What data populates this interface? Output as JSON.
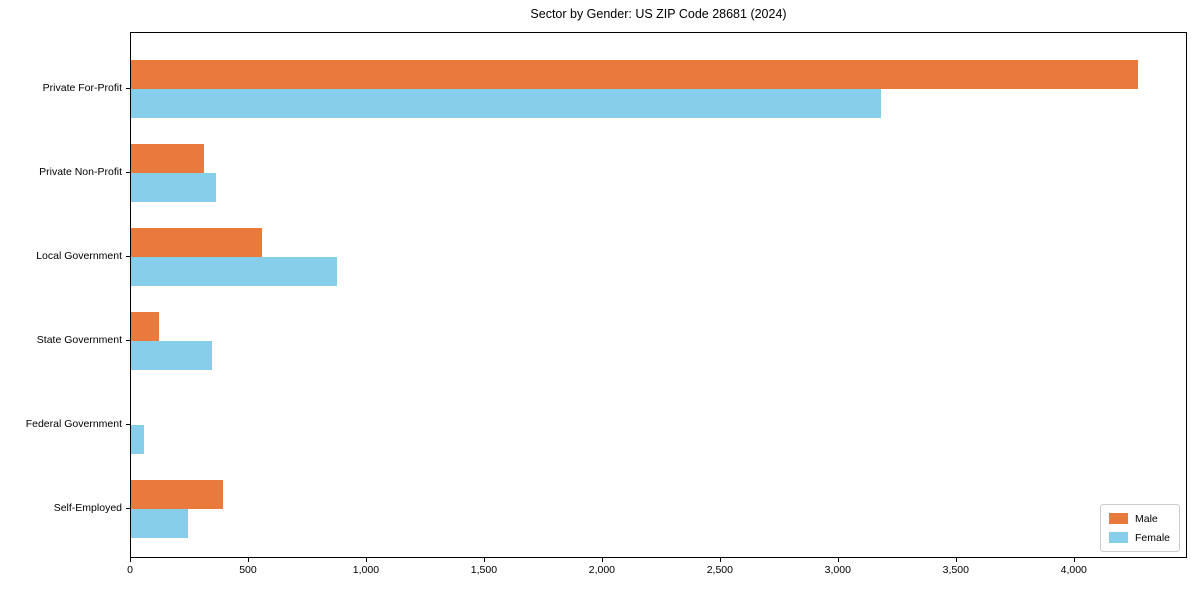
{
  "chart_data": {
    "type": "bar",
    "orientation": "horizontal",
    "title": "Sector by Gender: US ZIP Code 28681 (2024)",
    "categories": [
      "Private For-Profit",
      "Private Non-Profit",
      "Local Government",
      "State Government",
      "Federal Government",
      "Self-Employed"
    ],
    "series": [
      {
        "name": "Male",
        "color": "#EA7A3C",
        "values": [
          4267,
          310,
          555,
          120,
          0,
          390
        ]
      },
      {
        "name": "Female",
        "color": "#87CEEB",
        "values": [
          3180,
          360,
          875,
          345,
          55,
          240
        ]
      }
    ],
    "xlabel": "",
    "ylabel": "",
    "xlim": [
      0,
      4480
    ],
    "xticks": [
      0,
      500,
      1000,
      1500,
      2000,
      2500,
      3000,
      3500,
      4000
    ],
    "xtick_labels": [
      "0",
      "500",
      "1,000",
      "1,500",
      "2,000",
      "2,500",
      "3,000",
      "3,500",
      "4,000"
    ],
    "grid": false,
    "legend": {
      "position": "lower right",
      "entries": [
        "Male",
        "Female"
      ]
    }
  },
  "colors": {
    "background": "#ffffff",
    "spine": "#000000",
    "text": "#000000",
    "legend_border": "#cccccc",
    "male": "#EA7A3C",
    "female": "#87CEEB"
  }
}
